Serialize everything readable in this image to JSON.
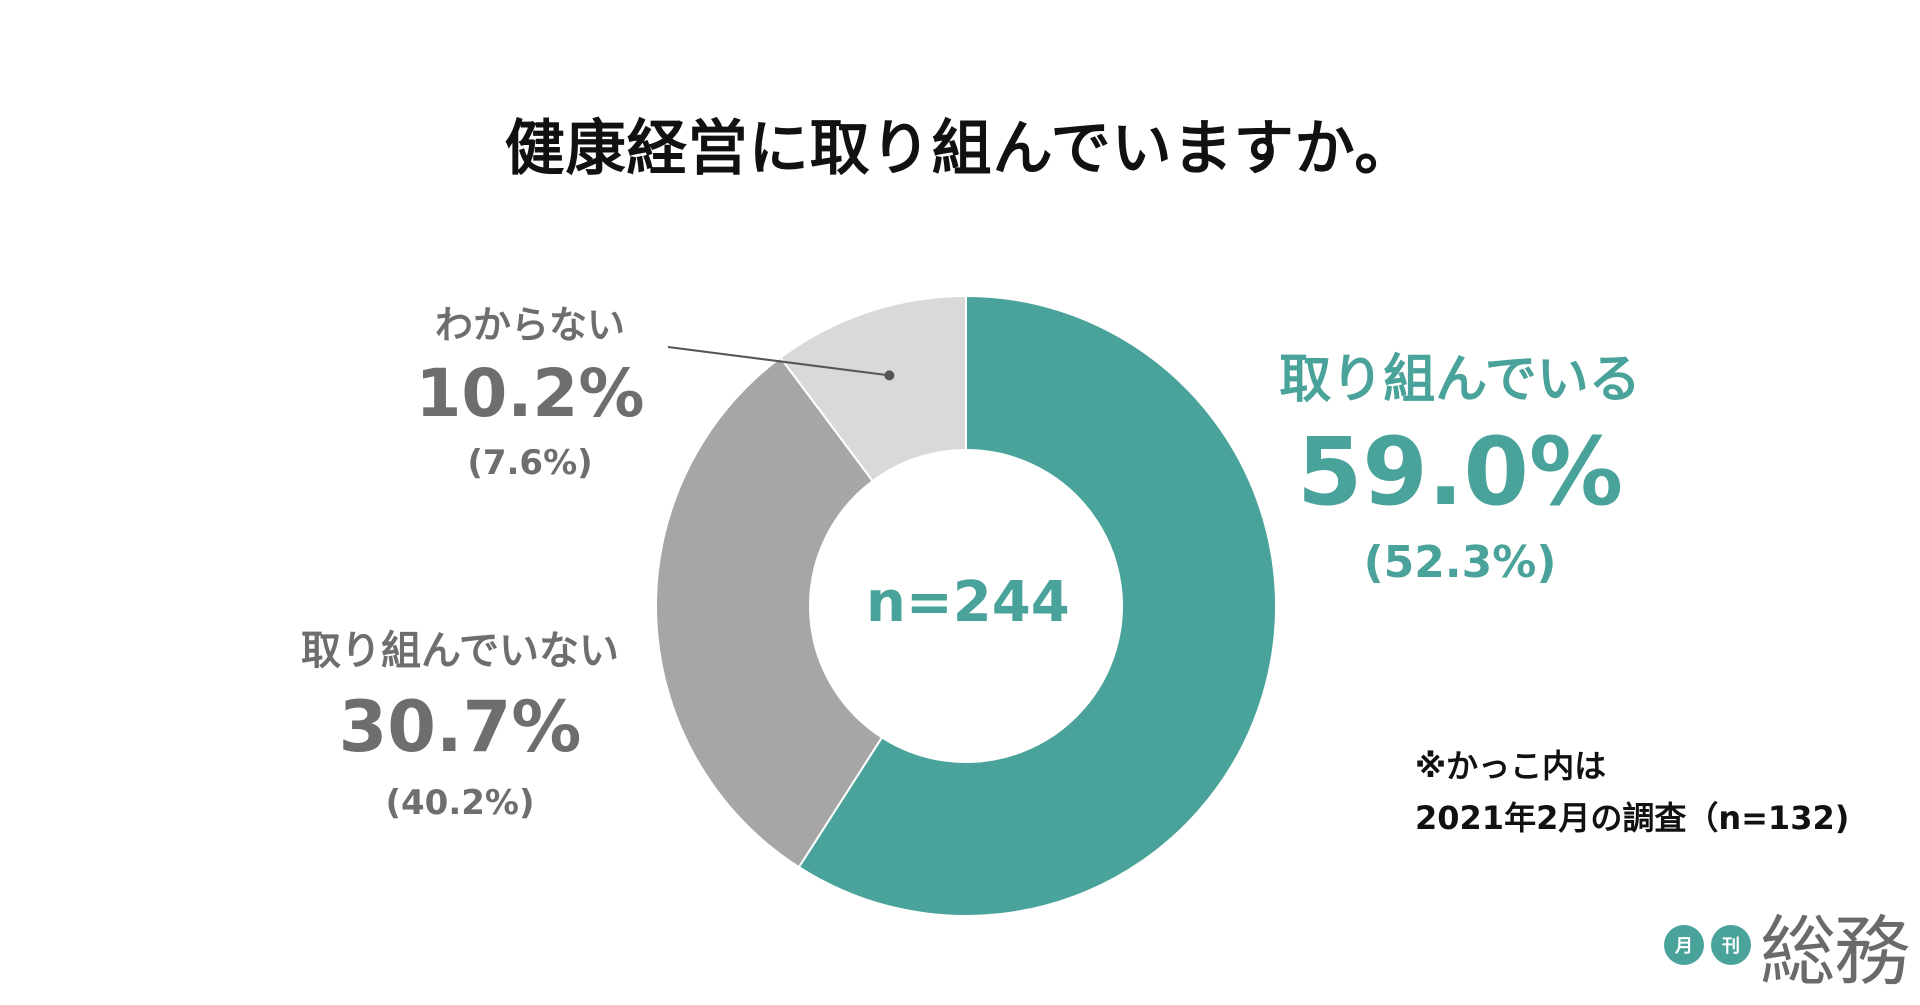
{
  "chart_data": {
    "type": "pie",
    "style": "donut",
    "title": "健康経営に取り組んでいますか。",
    "center_label": "n=244",
    "categories": [
      "取り組んでいる",
      "取り組んでいない",
      "わからない"
    ],
    "values": [
      59.0,
      30.7,
      10.2
    ],
    "value_labels": [
      "59.0%",
      "30.7%",
      "10.2%"
    ],
    "previous_values": [
      52.3,
      40.2,
      7.6
    ],
    "previous_labels": [
      "(52.3%)",
      "(40.2%)",
      "(7.6%)"
    ],
    "colors": [
      "#4aa39a",
      "#a6a6a6",
      "#d9d9d9"
    ],
    "note_lines": [
      "※かっこ内は",
      "2021年2月の調査（n=132)"
    ]
  },
  "logo": {
    "badge_left": "月",
    "badge_right": "刊",
    "wordmark": "総務"
  }
}
